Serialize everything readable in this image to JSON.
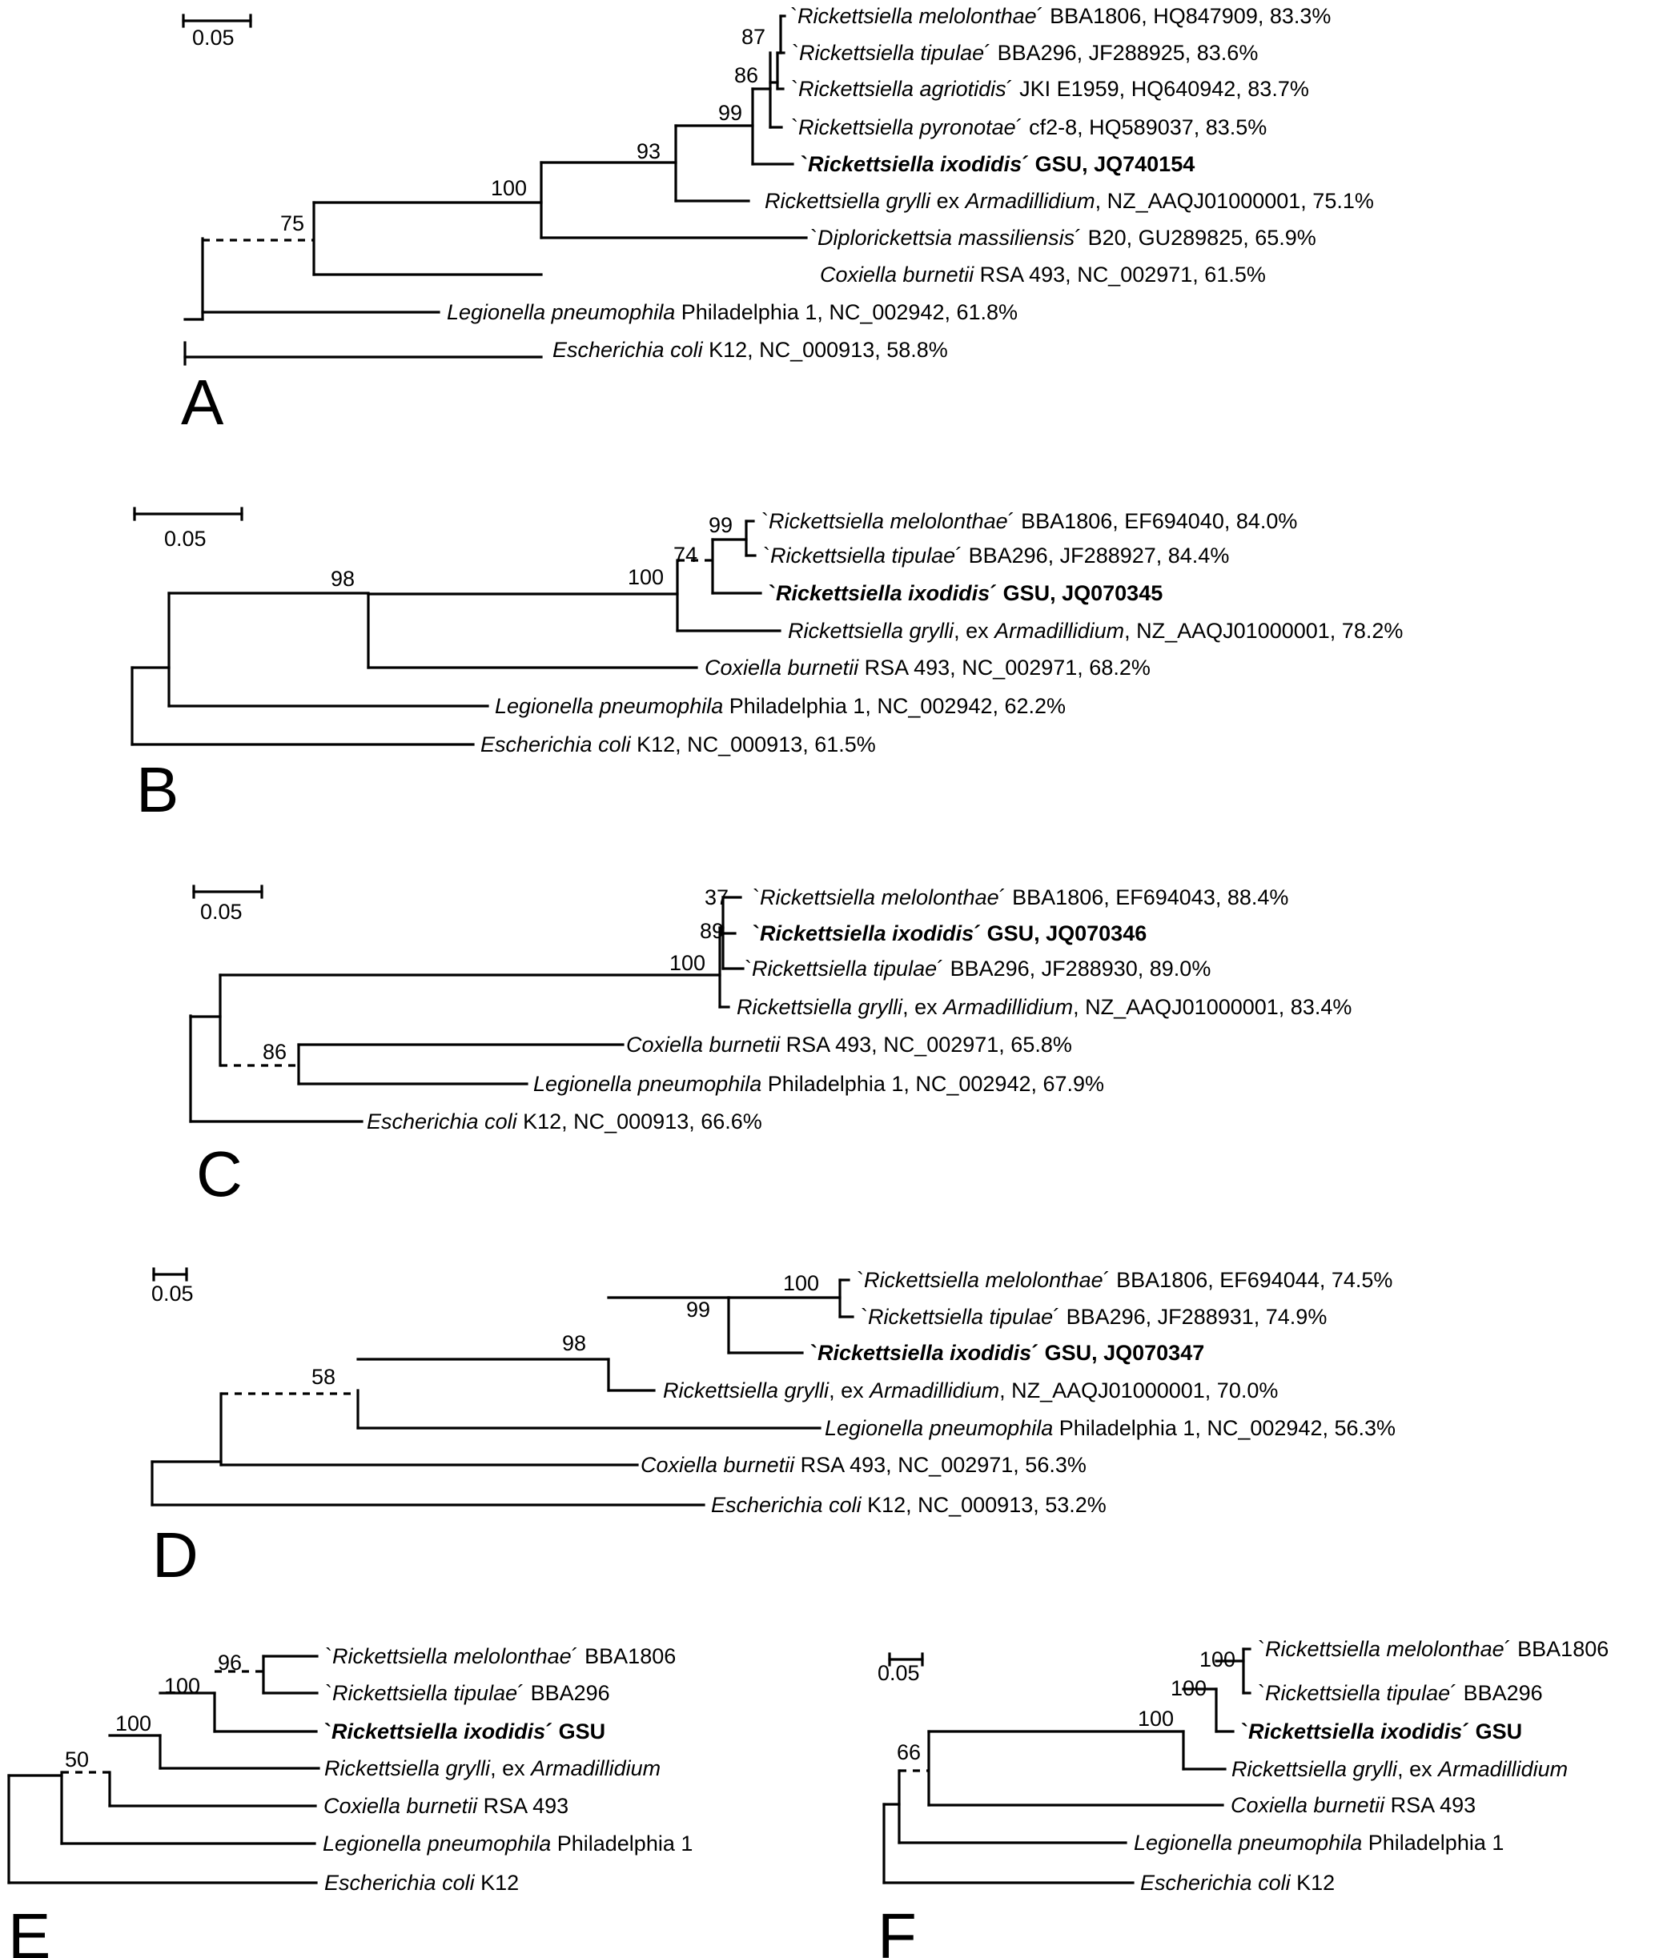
{
  "panels": [
    {
      "letter": "A",
      "scale_label": "0.05",
      "supports": [
        "87",
        "86",
        "99",
        "93",
        "100",
        "75"
      ],
      "taxa": [
        [
          {
            "t": "`",
            "i": false
          },
          {
            "t": "Rickettsiella melolonthae",
            "i": true
          },
          {
            "t": "´ BBA1806, HQ847909, 83.3%",
            "i": false
          }
        ],
        [
          {
            "t": "`",
            "i": false
          },
          {
            "t": "Rickettsiella tipulae",
            "i": true
          },
          {
            "t": "´ BBA296, JF288925, 83.6%",
            "i": false
          }
        ],
        [
          {
            "t": "`",
            "i": false
          },
          {
            "t": "Rickettsiella agriotidis",
            "i": true
          },
          {
            "t": "´ JKI E1959, HQ640942, 83.7%",
            "i": false
          }
        ],
        [
          {
            "t": "`",
            "i": false
          },
          {
            "t": "Rickettsiella pyronotae",
            "i": true
          },
          {
            "t": "´ cf2-8, HQ589037, 83.5%",
            "i": false
          }
        ],
        [
          {
            "t": "`",
            "i": false,
            "b": true
          },
          {
            "t": "Rickettsiella ixodidis",
            "i": true,
            "b": true
          },
          {
            "t": "´ GSU, JQ740154",
            "i": false,
            "b": true
          }
        ],
        [
          {
            "t": "Rickettsiella grylli",
            "i": true
          },
          {
            "t": " ex ",
            "i": false
          },
          {
            "t": "Armadillidium",
            "i": true
          },
          {
            "t": ", NZ_AAQJ01000001, 75.1%",
            "i": false
          }
        ],
        [
          {
            "t": "`",
            "i": false
          },
          {
            "t": "Diplorickettsia massiliensis",
            "i": true
          },
          {
            "t": "´ B20, GU289825, 65.9%",
            "i": false
          }
        ],
        [
          {
            "t": "Coxiella burnetii",
            "i": true
          },
          {
            "t": " RSA 493, NC_002971, 61.5%",
            "i": false
          }
        ],
        [
          {
            "t": "Legionella pneumophila",
            "i": true
          },
          {
            "t": " Philadelphia 1, NC_002942, 61.8%",
            "i": false
          }
        ],
        [
          {
            "t": "Escherichia coli",
            "i": true
          },
          {
            "t": " K12, NC_000913, 58.8%",
            "i": false
          }
        ]
      ]
    },
    {
      "letter": "B",
      "scale_label": "0.05",
      "supports": [
        "99",
        "74",
        "100",
        "98"
      ],
      "taxa": [
        [
          {
            "t": "`",
            "i": false
          },
          {
            "t": "Rickettsiella melolonthae",
            "i": true
          },
          {
            "t": "´ BBA1806, EF694040, 84.0%",
            "i": false
          }
        ],
        [
          {
            "t": "`",
            "i": false
          },
          {
            "t": "Rickettsiella tipulae",
            "i": true
          },
          {
            "t": "´ BBA296, JF288927, 84.4%",
            "i": false
          }
        ],
        [
          {
            "t": "`",
            "i": false,
            "b": true
          },
          {
            "t": "Rickettsiella ixodidis",
            "i": true,
            "b": true
          },
          {
            "t": "´ GSU, JQ070345",
            "i": false,
            "b": true
          }
        ],
        [
          {
            "t": "Rickettsiella grylli",
            "i": true
          },
          {
            "t": ", ex ",
            "i": false
          },
          {
            "t": "Armadillidium",
            "i": true
          },
          {
            "t": ", NZ_AAQJ01000001, 78.2%",
            "i": false
          }
        ],
        [
          {
            "t": "Coxiella burnetii",
            "i": true
          },
          {
            "t": " RSA 493, NC_002971, 68.2%",
            "i": false
          }
        ],
        [
          {
            "t": "Legionella pneumophila",
            "i": true
          },
          {
            "t": " Philadelphia 1, NC_002942, 62.2%",
            "i": false
          }
        ],
        [
          {
            "t": "Escherichia coli",
            "i": true
          },
          {
            "t": " K12, NC_000913, 61.5%",
            "i": false
          }
        ]
      ]
    },
    {
      "letter": "C",
      "scale_label": "0.05",
      "supports": [
        "37",
        "89",
        "100",
        "86"
      ],
      "taxa": [
        [
          {
            "t": "`",
            "i": false
          },
          {
            "t": "Rickettsiella melolonthae",
            "i": true
          },
          {
            "t": "´ BBA1806, EF694043, 88.4%",
            "i": false
          }
        ],
        [
          {
            "t": "`",
            "i": false,
            "b": true
          },
          {
            "t": "Rickettsiella ixodidis",
            "i": true,
            "b": true
          },
          {
            "t": "´ GSU, JQ070346",
            "i": false,
            "b": true
          }
        ],
        [
          {
            "t": "`",
            "i": false
          },
          {
            "t": "Rickettsiella tipulae",
            "i": true
          },
          {
            "t": "´ BBA296, JF288930, 89.0%",
            "i": false
          }
        ],
        [
          {
            "t": "Rickettsiella grylli",
            "i": true
          },
          {
            "t": ", ex ",
            "i": false
          },
          {
            "t": "Armadillidium",
            "i": true
          },
          {
            "t": ", NZ_AAQJ01000001, 83.4%",
            "i": false
          }
        ],
        [
          {
            "t": "Coxiella burnetii",
            "i": true
          },
          {
            "t": " RSA 493, NC_002971, 65.8%",
            "i": false
          }
        ],
        [
          {
            "t": "Legionella pneumophila",
            "i": true
          },
          {
            "t": " Philadelphia 1, NC_002942, 67.9%",
            "i": false
          }
        ],
        [
          {
            "t": "Escherichia coli",
            "i": true
          },
          {
            "t": " K12, NC_000913, 66.6%",
            "i": false
          }
        ]
      ]
    },
    {
      "letter": "D",
      "scale_label": "0.05",
      "supports": [
        "100",
        "99",
        "98",
        "58"
      ],
      "taxa": [
        [
          {
            "t": "`",
            "i": false
          },
          {
            "t": "Rickettsiella melolonthae",
            "i": true
          },
          {
            "t": "´ BBA1806, EF694044, 74.5%",
            "i": false
          }
        ],
        [
          {
            "t": "`",
            "i": false
          },
          {
            "t": "Rickettsiella tipulae",
            "i": true
          },
          {
            "t": "´ BBA296, JF288931, 74.9%",
            "i": false
          }
        ],
        [
          {
            "t": "`",
            "i": false,
            "b": true
          },
          {
            "t": "Rickettsiella ixodidis",
            "i": true,
            "b": true
          },
          {
            "t": "´ GSU, JQ070347",
            "i": false,
            "b": true
          }
        ],
        [
          {
            "t": "Rickettsiella grylli",
            "i": true
          },
          {
            "t": ", ex ",
            "i": false
          },
          {
            "t": "Armadillidium",
            "i": true
          },
          {
            "t": ", NZ_AAQJ01000001, 70.0%",
            "i": false
          }
        ],
        [
          {
            "t": "Legionella pneumophila",
            "i": true
          },
          {
            "t": " Philadelphia 1, NC_002942, 56.3%",
            "i": false
          }
        ],
        [
          {
            "t": "Coxiella burnetii",
            "i": true
          },
          {
            "t": " RSA 493, NC_002971, 56.3%",
            "i": false
          }
        ],
        [
          {
            "t": "Escherichia coli",
            "i": true
          },
          {
            "t": " K12, NC_000913, 53.2%",
            "i": false
          }
        ]
      ]
    },
    {
      "letter": "E",
      "scale_label": "",
      "supports": [
        "96",
        "100",
        "100",
        "50"
      ],
      "taxa": [
        [
          {
            "t": "`",
            "i": false
          },
          {
            "t": "Rickettsiella melolonthae",
            "i": true
          },
          {
            "t": "´ BBA1806",
            "i": false
          }
        ],
        [
          {
            "t": "`",
            "i": false
          },
          {
            "t": "Rickettsiella tipulae",
            "i": true
          },
          {
            "t": "´ BBA296",
            "i": false
          }
        ],
        [
          {
            "t": "`",
            "i": false,
            "b": true
          },
          {
            "t": "Rickettsiella ixodidis",
            "i": true,
            "b": true
          },
          {
            "t": "´ GSU",
            "i": false,
            "b": true
          }
        ],
        [
          {
            "t": "Rickettsiella grylli",
            "i": true
          },
          {
            "t": ", ex ",
            "i": false
          },
          {
            "t": "Armadillidium",
            "i": true
          }
        ],
        [
          {
            "t": "Coxiella burnetii",
            "i": true
          },
          {
            "t": " RSA 493",
            "i": false
          }
        ],
        [
          {
            "t": "Legionella pneumophila",
            "i": true
          },
          {
            "t": " Philadelphia 1",
            "i": false
          }
        ],
        [
          {
            "t": "Escherichia coli",
            "i": true
          },
          {
            "t": " K12",
            "i": false
          }
        ]
      ]
    },
    {
      "letter": "F",
      "scale_label": "0.05",
      "supports": [
        "100",
        "100",
        "100",
        "66"
      ],
      "taxa": [
        [
          {
            "t": "`",
            "i": false
          },
          {
            "t": "Rickettsiella melolonthae",
            "i": true
          },
          {
            "t": "´ BBA1806",
            "i": false
          }
        ],
        [
          {
            "t": "`",
            "i": false
          },
          {
            "t": "Rickettsiella tipulae",
            "i": true
          },
          {
            "t": "´ BBA296",
            "i": false
          }
        ],
        [
          {
            "t": "`",
            "i": false,
            "b": true
          },
          {
            "t": "Rickettsiella ixodidis",
            "i": true,
            "b": true
          },
          {
            "t": "´ GSU",
            "i": false,
            "b": true
          }
        ],
        [
          {
            "t": "Rickettsiella grylli",
            "i": true
          },
          {
            "t": ", ex ",
            "i": false
          },
          {
            "t": "Armadillidium",
            "i": true
          }
        ],
        [
          {
            "t": "Coxiella burnetii",
            "i": true
          },
          {
            "t": " RSA 493",
            "i": false
          }
        ],
        [
          {
            "t": "Legionella pneumophila",
            "i": true
          },
          {
            "t": " Philadelphia 1",
            "i": false
          }
        ],
        [
          {
            "t": "Escherichia coli",
            "i": true
          },
          {
            "t": " K12",
            "i": false
          }
        ]
      ]
    }
  ]
}
